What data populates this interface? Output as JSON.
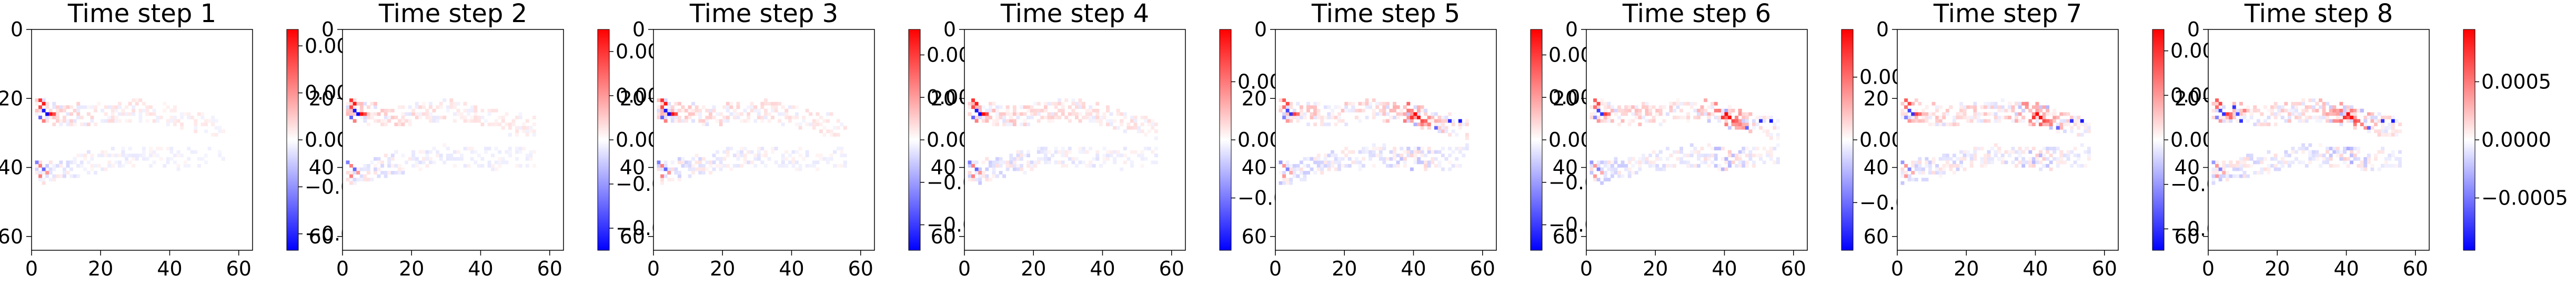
{
  "chart_data": [
    {
      "type": "heatmap",
      "title": "Time step 1",
      "x_ticks": [
        "0",
        "20",
        "40",
        "60"
      ],
      "y_ticks": [
        "0",
        "20",
        "40",
        "60"
      ],
      "xlim": [
        0,
        64
      ],
      "ylim": [
        64,
        0
      ],
      "colormap": "bwr",
      "colorbar_ticks": [
        "0.004",
        "0.002",
        "0.000",
        "−0.002",
        "−0.004"
      ],
      "colorbar_tick_values": [
        0.004,
        0.002,
        0.0,
        -0.002,
        -0.004
      ],
      "colorbar_range": [
        -0.0047,
        0.0047
      ]
    },
    {
      "type": "heatmap",
      "title": "Time step 2",
      "x_ticks": [
        "0",
        "20",
        "40",
        "60"
      ],
      "y_ticks": [
        "0",
        "20",
        "40",
        "60"
      ],
      "xlim": [
        0,
        64
      ],
      "ylim": [
        64,
        0
      ],
      "colormap": "bwr",
      "colorbar_ticks": [
        "0.0010",
        "0.0005",
        "0.0000",
        "−0.0005",
        "−0.0010"
      ],
      "colorbar_tick_values": [
        0.001,
        0.0005,
        0.0,
        -0.0005,
        -0.001
      ],
      "colorbar_range": [
        -0.00125,
        0.00125
      ]
    },
    {
      "type": "heatmap",
      "title": "Time step 3",
      "x_ticks": [
        "0",
        "20",
        "40",
        "60"
      ],
      "y_ticks": [
        "0",
        "20",
        "40",
        "60"
      ],
      "xlim": [
        0,
        64
      ],
      "ylim": [
        64,
        0
      ],
      "colormap": "bwr",
      "colorbar_ticks": [
        "0.0010",
        "0.0005",
        "0.0000",
        "−0.0005",
        "−0.0010"
      ],
      "colorbar_tick_values": [
        0.001,
        0.0005,
        0.0,
        -0.0005,
        -0.001
      ],
      "colorbar_range": [
        -0.0013,
        0.0013
      ]
    },
    {
      "type": "heatmap",
      "title": "Time step 4",
      "x_ticks": [
        "0",
        "20",
        "40",
        "60"
      ],
      "y_ticks": [
        "0",
        "20",
        "40",
        "60"
      ],
      "xlim": [
        0,
        64
      ],
      "ylim": [
        64,
        0
      ],
      "colormap": "bwr",
      "colorbar_ticks": [
        "0.0005",
        "0.0000",
        "−0.0005"
      ],
      "colorbar_tick_values": [
        0.0005,
        0.0,
        -0.0005
      ],
      "colorbar_range": [
        -0.00095,
        0.00095
      ]
    },
    {
      "type": "heatmap",
      "title": "Time step 5",
      "x_ticks": [
        "0",
        "20",
        "40",
        "60"
      ],
      "y_ticks": [
        "0",
        "20",
        "40",
        "60"
      ],
      "xlim": [
        0,
        64
      ],
      "ylim": [
        64,
        0
      ],
      "colormap": "bwr",
      "colorbar_ticks": [
        "0.00050",
        "0.00025",
        "0.00000",
        "−0.00025",
        "−0.00050"
      ],
      "colorbar_tick_values": [
        0.0005,
        0.00025,
        0.0,
        -0.00025,
        -0.0005
      ],
      "colorbar_range": [
        -0.00065,
        0.00065
      ]
    },
    {
      "type": "heatmap",
      "title": "Time step 6",
      "x_ticks": [
        "0",
        "20",
        "40",
        "60"
      ],
      "y_ticks": [
        "0",
        "20",
        "40",
        "60"
      ],
      "xlim": [
        0,
        64
      ],
      "ylim": [
        64,
        0
      ],
      "colormap": "bwr",
      "colorbar_ticks": [
        "0.0005",
        "0.0000",
        "−0.0005"
      ],
      "colorbar_tick_values": [
        0.0005,
        0.0,
        -0.0005
      ],
      "colorbar_range": [
        -0.00088,
        0.00088
      ]
    },
    {
      "type": "heatmap",
      "title": "Time step 7",
      "x_ticks": [
        "0",
        "20",
        "40",
        "60"
      ],
      "y_ticks": [
        "0",
        "20",
        "40",
        "60"
      ],
      "xlim": [
        0,
        64
      ],
      "ylim": [
        64,
        0
      ],
      "colormap": "bwr",
      "colorbar_ticks": [
        "0.00050",
        "0.00025",
        "0.00000",
        "−0.00025",
        "−0.00050"
      ],
      "colorbar_tick_values": [
        0.0005,
        0.00025,
        0.0,
        -0.00025,
        -0.0005
      ],
      "colorbar_range": [
        -0.00062,
        0.00062
      ]
    },
    {
      "type": "heatmap",
      "title": "Time step 8",
      "x_ticks": [
        "0",
        "20",
        "40",
        "60"
      ],
      "y_ticks": [
        "0",
        "20",
        "40",
        "60"
      ],
      "xlim": [
        0,
        64
      ],
      "ylim": [
        64,
        0
      ],
      "colormap": "bwr",
      "colorbar_ticks": [
        "0.0005",
        "0.0000",
        "−0.0005"
      ],
      "colorbar_tick_values": [
        0.0005,
        0.0,
        -0.0005
      ],
      "colorbar_range": [
        -0.00095,
        0.00095
      ]
    }
  ]
}
